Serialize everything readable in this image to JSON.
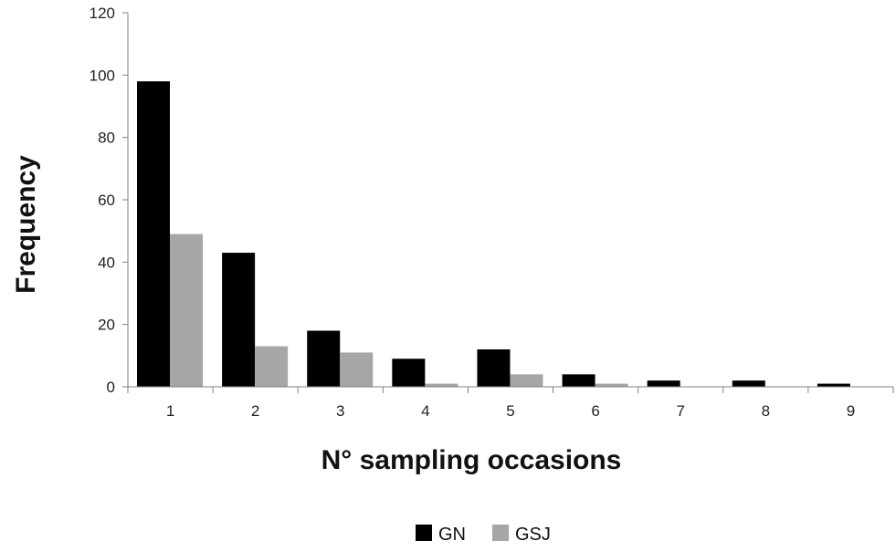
{
  "chart_data": {
    "type": "bar",
    "categories": [
      "1",
      "2",
      "3",
      "4",
      "5",
      "6",
      "7",
      "8",
      "9"
    ],
    "series": [
      {
        "name": "GN",
        "color": "#000000",
        "values": [
          98,
          43,
          18,
          9,
          12,
          4,
          2,
          2,
          1
        ]
      },
      {
        "name": "GSJ",
        "color": "#a6a6a6",
        "values": [
          49,
          13,
          11,
          1,
          4,
          1,
          0,
          0,
          0
        ]
      }
    ],
    "xlabel": "N° sampling occasions",
    "ylabel": "Frequency",
    "ylim": [
      0,
      120
    ],
    "yticks": [
      "0",
      "20",
      "40",
      "60",
      "80",
      "100",
      "120"
    ],
    "legend_position": "bottom-center",
    "grid": false
  }
}
